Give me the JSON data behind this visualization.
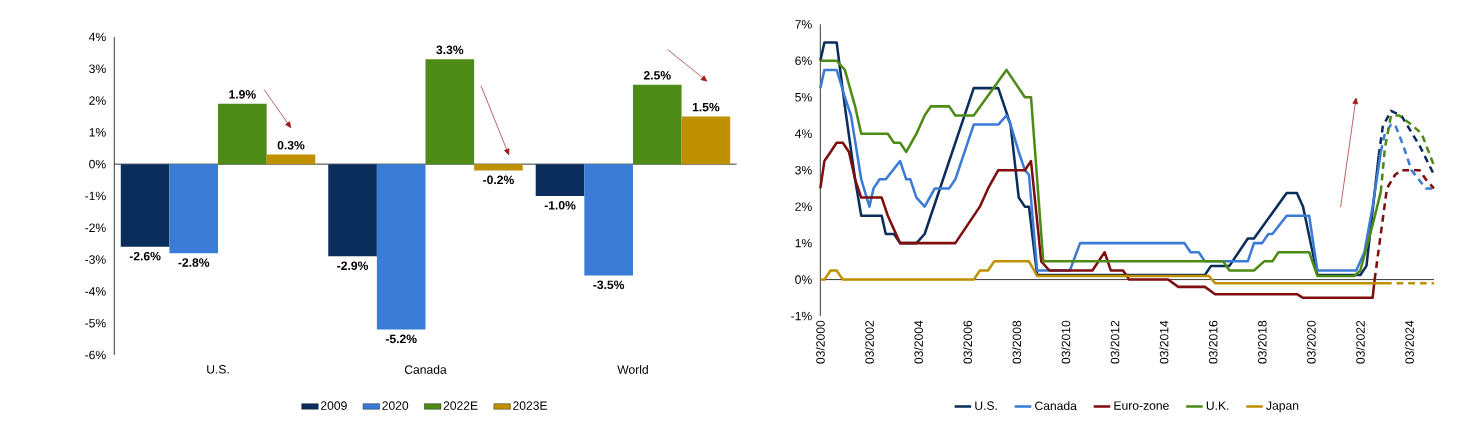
{
  "chart_data": [
    {
      "type": "bar",
      "categories": [
        "U.S.",
        "Canada",
        "World"
      ],
      "series": [
        {
          "name": "2009",
          "color": "#0b2d5b",
          "values": [
            -2.6,
            -2.9,
            -1.0
          ],
          "value_labels": [
            "-2.6%",
            "-2.9%",
            "-1.0%"
          ]
        },
        {
          "name": "2020",
          "color": "#3a7bd5",
          "values": [
            -2.8,
            -5.2,
            -3.5
          ],
          "value_labels": [
            "-2.8%",
            "-5.2%",
            "-3.5%"
          ]
        },
        {
          "name": "2022E",
          "color": "#4e8a16",
          "values": [
            1.9,
            3.3,
            2.5
          ],
          "value_labels": [
            "1.9%",
            "3.3%",
            "2.5%"
          ]
        },
        {
          "name": "2023E",
          "color": "#bf9000",
          "values": [
            0.3,
            -0.2,
            1.5
          ],
          "value_labels": [
            "0.3%",
            "-0.2%",
            "1.5%"
          ]
        }
      ],
      "ylim": [
        -6,
        4
      ],
      "yticks": [
        {
          "value": -6,
          "label": "-6%"
        },
        {
          "value": -5,
          "label": "-5%"
        },
        {
          "value": -4,
          "label": "-4%"
        },
        {
          "value": -3,
          "label": "-3%"
        },
        {
          "value": -2,
          "label": "-2%"
        },
        {
          "value": -1,
          "label": "-1%"
        },
        {
          "value": 0,
          "label": "0%"
        },
        {
          "value": 1,
          "label": "1%"
        },
        {
          "value": 2,
          "label": "2%"
        },
        {
          "value": 3,
          "label": "3%"
        },
        {
          "value": 4,
          "label": "4%"
        }
      ],
      "legend": "bottom"
    },
    {
      "type": "line",
      "series": [
        {
          "name": "U.S.",
          "color": "#0b2d5b",
          "x": [
            "2000-03",
            "2000-05",
            "2000-11",
            "2001-03",
            "2001-08",
            "2001-11",
            "2002-09",
            "2002-11",
            "2003-03",
            "2003-06",
            "2004-02",
            "2004-06",
            "2006-06",
            "2007-06",
            "2007-12",
            "2008-04",
            "2008-07",
            "2008-09",
            "2009-01",
            "2015-11",
            "2016-02",
            "2016-11",
            "2017-08",
            "2017-11",
            "2019-03",
            "2019-08",
            "2019-11",
            "2020-06",
            "2022-03",
            "2022-06",
            "2022-12"
          ],
          "values": [
            6.0,
            6.5,
            6.5,
            4.75,
            2.75,
            1.75,
            1.75,
            1.25,
            1.25,
            1.0,
            1.0,
            1.25,
            5.25,
            5.25,
            4.25,
            2.25,
            2.0,
            2.0,
            0.125,
            0.125,
            0.375,
            0.375,
            1.125,
            1.125,
            2.375,
            2.375,
            2.0,
            0.125,
            0.125,
            0.375,
            3.4
          ]
        },
        {
          "color": "#0b2d5b",
          "line_style": "dashed",
          "x": [
            "2022-12",
            "2023-02",
            "2023-06",
            "2023-11",
            "2024-08",
            "2025-03"
          ],
          "values": [
            3.4,
            4.2,
            4.625,
            4.5,
            3.67,
            2.875
          ]
        },
        {
          "name": "Canada",
          "color": "#3a7bd5",
          "x": [
            "2000-03",
            "2000-05",
            "2000-11",
            "2001-03",
            "2001-06",
            "2001-11",
            "2002-03",
            "2002-05",
            "2002-08",
            "2002-11",
            "2003-06",
            "2003-09",
            "2003-11",
            "2004-02",
            "2004-06",
            "2004-11",
            "2005-06",
            "2005-09",
            "2006-06",
            "2007-06",
            "2007-10",
            "2007-12",
            "2008-04",
            "2008-07",
            "2008-09",
            "2009-01",
            "2010-05",
            "2010-10",
            "2015-01",
            "2015-04",
            "2015-08",
            "2015-11",
            "2017-08",
            "2017-11",
            "2018-03",
            "2018-06",
            "2018-08",
            "2019-03",
            "2020-02",
            "2020-06",
            "2022-01",
            "2022-05",
            "2022-09",
            "2023-01"
          ],
          "values": [
            5.25,
            5.75,
            5.75,
            5.0,
            4.5,
            2.75,
            2.0,
            2.5,
            2.75,
            2.75,
            3.25,
            2.75,
            2.75,
            2.25,
            2.0,
            2.5,
            2.5,
            2.75,
            4.25,
            4.25,
            4.5,
            4.25,
            3.5,
            3.0,
            2.875,
            0.25,
            0.25,
            1.0,
            1.0,
            0.75,
            0.75,
            0.5,
            0.5,
            1.0,
            1.0,
            1.25,
            1.25,
            1.75,
            1.75,
            0.25,
            0.25,
            0.75,
            2.0,
            3.5
          ]
        },
        {
          "color": "#3a7bd5",
          "line_style": "dashed",
          "x": [
            "2023-01",
            "2023-03",
            "2023-06",
            "2023-08",
            "2023-12",
            "2024-04",
            "2024-11",
            "2025-03"
          ],
          "values": [
            3.5,
            4.0,
            4.25,
            4.25,
            3.67,
            3.0,
            2.5,
            2.5
          ]
        },
        {
          "name": "Euro-zone",
          "color": "#7f0e0e",
          "x": [
            "2000-03",
            "2000-05",
            "2000-08",
            "2000-11",
            "2001-02",
            "2001-05",
            "2001-08",
            "2001-11",
            "2002-09",
            "2002-12",
            "2003-02",
            "2003-06",
            "2005-09",
            "2006-09",
            "2007-01",
            "2007-06",
            "2008-07",
            "2008-10",
            "2008-11",
            "2009-03",
            "2009-07",
            "2011-04",
            "2011-10",
            "2012-01",
            "2012-07",
            "2012-10",
            "2014-05",
            "2014-10",
            "2015-11",
            "2016-04",
            "2019-08",
            "2019-11",
            "2022-09",
            "2022-10"
          ],
          "values": [
            2.5,
            3.25,
            3.5,
            3.75,
            3.75,
            3.5,
            2.75,
            2.25,
            2.25,
            1.75,
            1.5,
            1.0,
            1.0,
            2.0,
            2.5,
            3.0,
            3.0,
            3.25,
            2.7,
            0.5,
            0.25,
            0.25,
            0.75,
            0.25,
            0.25,
            0.0,
            0.0,
            -0.2,
            -0.2,
            -0.4,
            -0.4,
            -0.5,
            -0.5,
            0.0
          ]
        },
        {
          "color": "#7f0e0e",
          "line_style": "dashed",
          "x": [
            "2022-10",
            "2023-01",
            "2023-04",
            "2023-08",
            "2023-11",
            "2024-08",
            "2024-11",
            "2025-03"
          ],
          "values": [
            0.0,
            1.25,
            2.5,
            2.875,
            3.0,
            3.0,
            2.75,
            2.5
          ]
        },
        {
          "name": "U.K.",
          "color": "#4e8a16",
          "x": [
            "2000-03",
            "2000-11",
            "2001-03",
            "2001-08",
            "2001-11",
            "2002-12",
            "2003-03",
            "2003-06",
            "2003-09",
            "2004-02",
            "2004-06",
            "2004-09",
            "2005-06",
            "2005-09",
            "2006-06",
            "2007-10",
            "2008-07",
            "2008-10",
            "2009-04",
            "2016-08",
            "2016-11",
            "2017-11",
            "2018-04",
            "2018-08",
            "2018-11",
            "2020-02",
            "2020-06",
            "2021-12",
            "2022-03",
            "2022-09",
            "2023-01"
          ],
          "values": [
            6.0,
            6.0,
            5.75,
            4.75,
            4.0,
            4.0,
            3.75,
            3.75,
            3.5,
            4.0,
            4.5,
            4.75,
            4.75,
            4.5,
            4.5,
            5.75,
            5.0,
            5.0,
            0.5,
            0.5,
            0.25,
            0.25,
            0.5,
            0.5,
            0.75,
            0.75,
            0.1,
            0.1,
            0.25,
            1.5,
            2.4
          ]
        },
        {
          "color": "#4e8a16",
          "line_style": "dashed",
          "x": [
            "2023-01",
            "2023-03",
            "2023-06",
            "2023-10",
            "2024-04",
            "2024-09",
            "2025-03"
          ],
          "values": [
            2.4,
            3.6,
            4.5,
            4.5,
            4.25,
            4.0,
            3.125
          ]
        },
        {
          "name": "Japan",
          "color": "#bf9000",
          "x": [
            "2000-03",
            "2000-05",
            "2000-08",
            "2000-11",
            "2001-02",
            "2006-06",
            "2006-09",
            "2007-01",
            "2007-04",
            "2008-09",
            "2009-01",
            "2016-01",
            "2016-04",
            "2023-03"
          ],
          "values": [
            0.0,
            0.0,
            0.25,
            0.25,
            0.0,
            0.0,
            0.25,
            0.25,
            0.5,
            0.5,
            0.1,
            0.1,
            -0.1,
            -0.1
          ]
        },
        {
          "color": "#bf9000",
          "line_style": "dashed",
          "x": [
            "2023-03",
            "2025-03"
          ],
          "values": [
            -0.1,
            -0.1
          ]
        }
      ],
      "xlim": [
        "2000-03",
        "2025-03"
      ],
      "xticks": [
        {
          "value": "2000-03",
          "label": "03/2000"
        },
        {
          "value": "2002-03",
          "label": "03/2002"
        },
        {
          "value": "2004-03",
          "label": "03/2004"
        },
        {
          "value": "2006-03",
          "label": "03/2006"
        },
        {
          "value": "2008-03",
          "label": "03/2008"
        },
        {
          "value": "2010-03",
          "label": "03/2010"
        },
        {
          "value": "2012-03",
          "label": "03/2012"
        },
        {
          "value": "2014-03",
          "label": "03/2014"
        },
        {
          "value": "2016-03",
          "label": "03/2016"
        },
        {
          "value": "2018-03",
          "label": "03/2018"
        },
        {
          "value": "2020-03",
          "label": "03/2020"
        },
        {
          "value": "2022-03",
          "label": "03/2022"
        },
        {
          "value": "2024-03",
          "label": "03/2024"
        }
      ],
      "ylim": [
        -1,
        7
      ],
      "yticks": [
        {
          "value": -1,
          "label": "-1%"
        },
        {
          "value": 0,
          "label": "0%"
        },
        {
          "value": 1,
          "label": "1%"
        },
        {
          "value": 2,
          "label": "2%"
        },
        {
          "value": 3,
          "label": "3%"
        },
        {
          "value": 4,
          "label": "4%"
        },
        {
          "value": 5,
          "label": "5%"
        },
        {
          "value": 6,
          "label": "6%"
        },
        {
          "value": 7,
          "label": "7%"
        }
      ],
      "legend": "bottom"
    }
  ]
}
